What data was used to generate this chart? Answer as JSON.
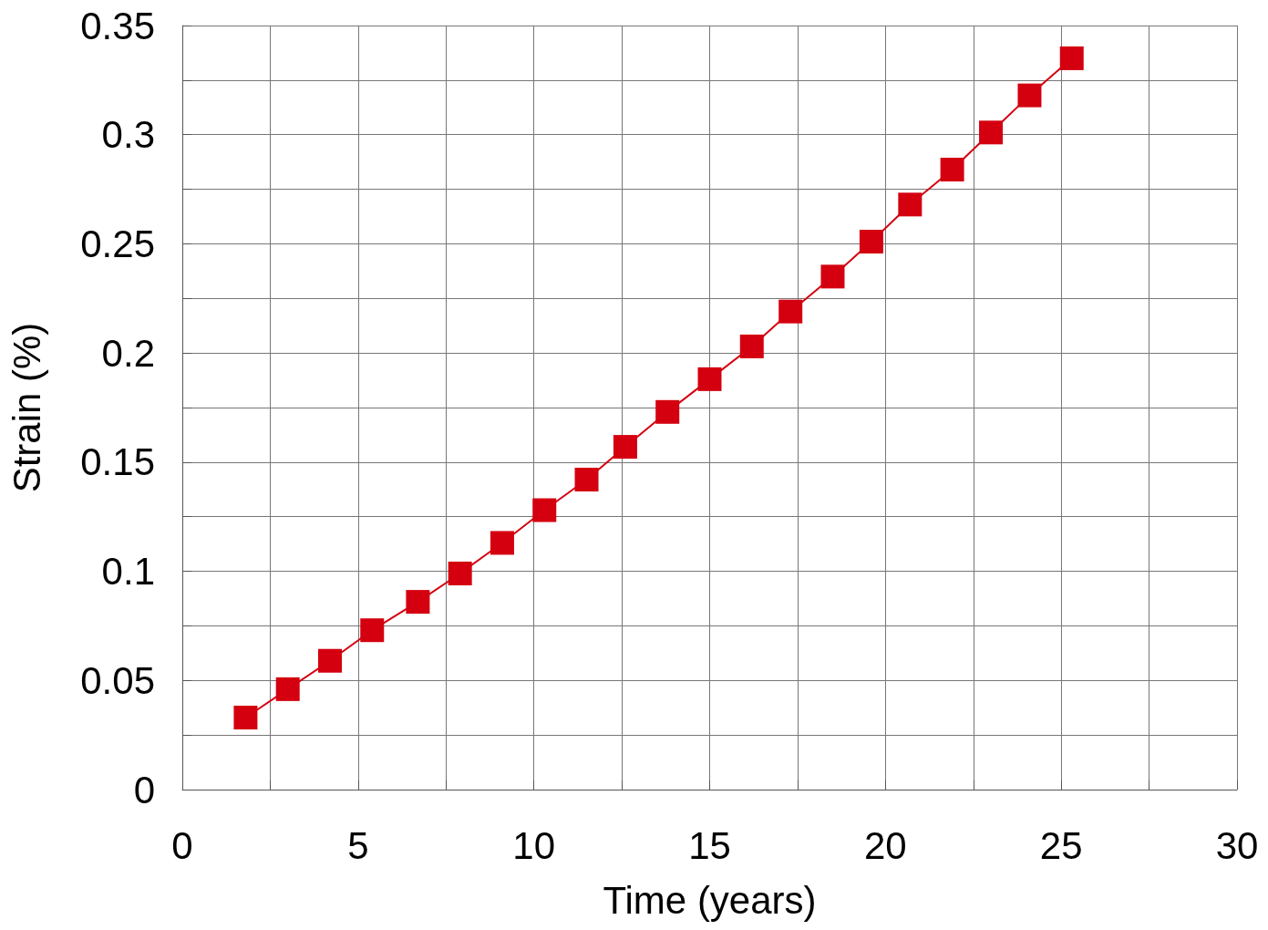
{
  "chart_data": {
    "type": "line",
    "xlabel": "Time (years)",
    "ylabel": "Strain (%)",
    "x": [
      1.8,
      3.0,
      4.2,
      5.4,
      6.7,
      7.9,
      9.1,
      10.3,
      11.5,
      12.6,
      13.8,
      15.0,
      16.2,
      17.3,
      18.5,
      19.6,
      20.7,
      21.9,
      23.0,
      24.1,
      25.3
    ],
    "series": [
      {
        "color": "#d40010",
        "values": [
          0.033,
          0.046,
          0.059,
          0.073,
          0.086,
          0.099,
          0.113,
          0.128,
          0.142,
          0.157,
          0.173,
          0.188,
          0.203,
          0.219,
          0.235,
          0.251,
          0.268,
          0.284,
          0.301,
          0.318,
          0.335
        ]
      }
    ],
    "xlim": [
      0,
      30
    ],
    "xticks": [
      0,
      {
        "value": 2.5,
        "label": null
      },
      5,
      {
        "value": 7.5,
        "label": null
      },
      10,
      {
        "value": 12.5,
        "label": null
      },
      15,
      {
        "value": 17.5,
        "label": null
      },
      20,
      {
        "value": 22.5,
        "label": null
      },
      25,
      {
        "value": 27.5,
        "label": null
      },
      30
    ],
    "ylim": [
      0,
      0.35
    ],
    "yticks": [
      0,
      {
        "value": 0.025,
        "label": null
      },
      0.05,
      {
        "value": 0.075,
        "label": null
      },
      0.1,
      {
        "value": 0.125,
        "label": null
      },
      0.15,
      {
        "value": 0.175,
        "label": null
      },
      0.2,
      {
        "value": 0.225,
        "label": null
      },
      0.25,
      {
        "value": 0.275,
        "label": null
      },
      0.3,
      {
        "value": 0.325,
        "label": null
      },
      0.35
    ],
    "grid": true,
    "marker": "square",
    "line_style": "solid"
  }
}
